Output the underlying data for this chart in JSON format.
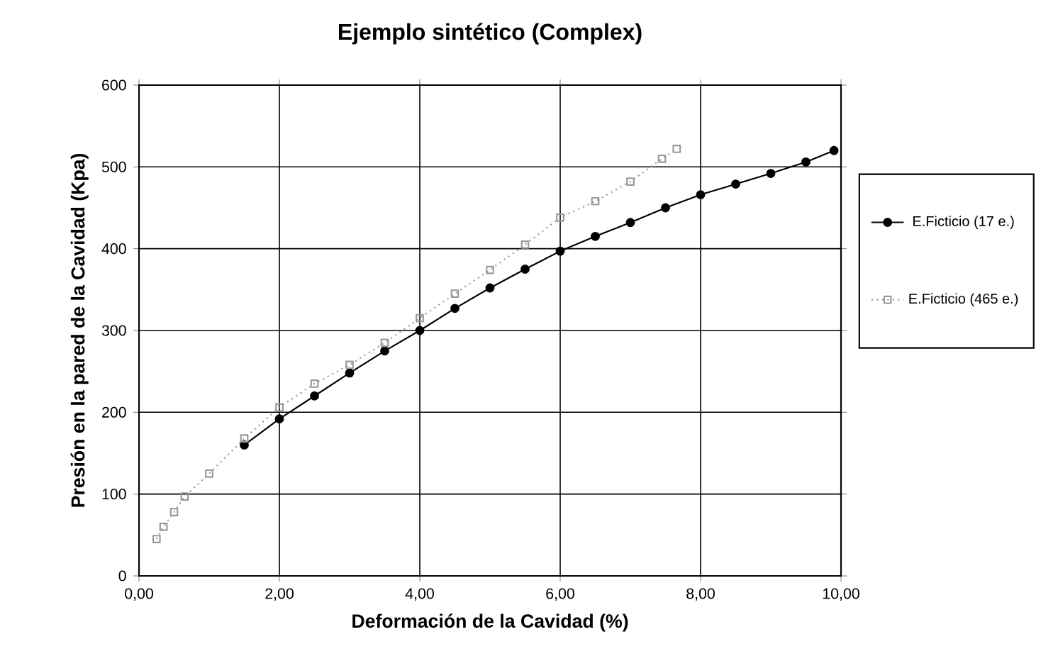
{
  "chart_data": {
    "type": "line",
    "title": "Ejemplo sintético (Complex)",
    "xlabel": "Deformación de la Cavidad (%)",
    "ylabel": "Presión en la pared de la Cavidad (Kpa)",
    "xlim": [
      0,
      10
    ],
    "ylim": [
      0,
      600
    ],
    "xticks": [
      {
        "value": 0,
        "label": "0,00"
      },
      {
        "value": 2,
        "label": "2,00"
      },
      {
        "value": 4,
        "label": "4,00"
      },
      {
        "value": 6,
        "label": "6,00"
      },
      {
        "value": 8,
        "label": "8,00"
      },
      {
        "value": 10,
        "label": "10,00"
      }
    ],
    "yticks": [
      0,
      100,
      200,
      300,
      400,
      500,
      600
    ],
    "grid": true,
    "legend": "right",
    "series": [
      {
        "name": "E.Ficticio (17 e.)",
        "color": "#000000",
        "marker": "circle",
        "line_style": "solid",
        "x": [
          1.5,
          2.0,
          2.5,
          3.0,
          3.5,
          4.0,
          4.5,
          5.0,
          5.5,
          6.0,
          6.5,
          7.0,
          7.5,
          8.0,
          8.5,
          9.0,
          9.5,
          9.9
        ],
        "values": [
          160,
          192,
          220,
          248,
          275,
          300,
          327,
          352,
          375,
          397,
          415,
          432,
          450,
          466,
          479,
          492,
          506,
          520
        ]
      },
      {
        "name": "E.Ficticio (465 e.)",
        "color": "#999999",
        "marker": "square",
        "line_style": "dotted",
        "x": [
          0.25,
          0.35,
          0.5,
          0.65,
          1.0,
          1.5,
          2.0,
          2.5,
          3.0,
          3.5,
          4.0,
          4.5,
          5.0,
          5.5,
          6.0,
          6.5,
          7.0,
          7.45,
          7.66
        ],
        "values": [
          45,
          60,
          78,
          97,
          125,
          168,
          206,
          235,
          258,
          285,
          315,
          345,
          374,
          405,
          438,
          458,
          482,
          510,
          522
        ]
      }
    ]
  }
}
